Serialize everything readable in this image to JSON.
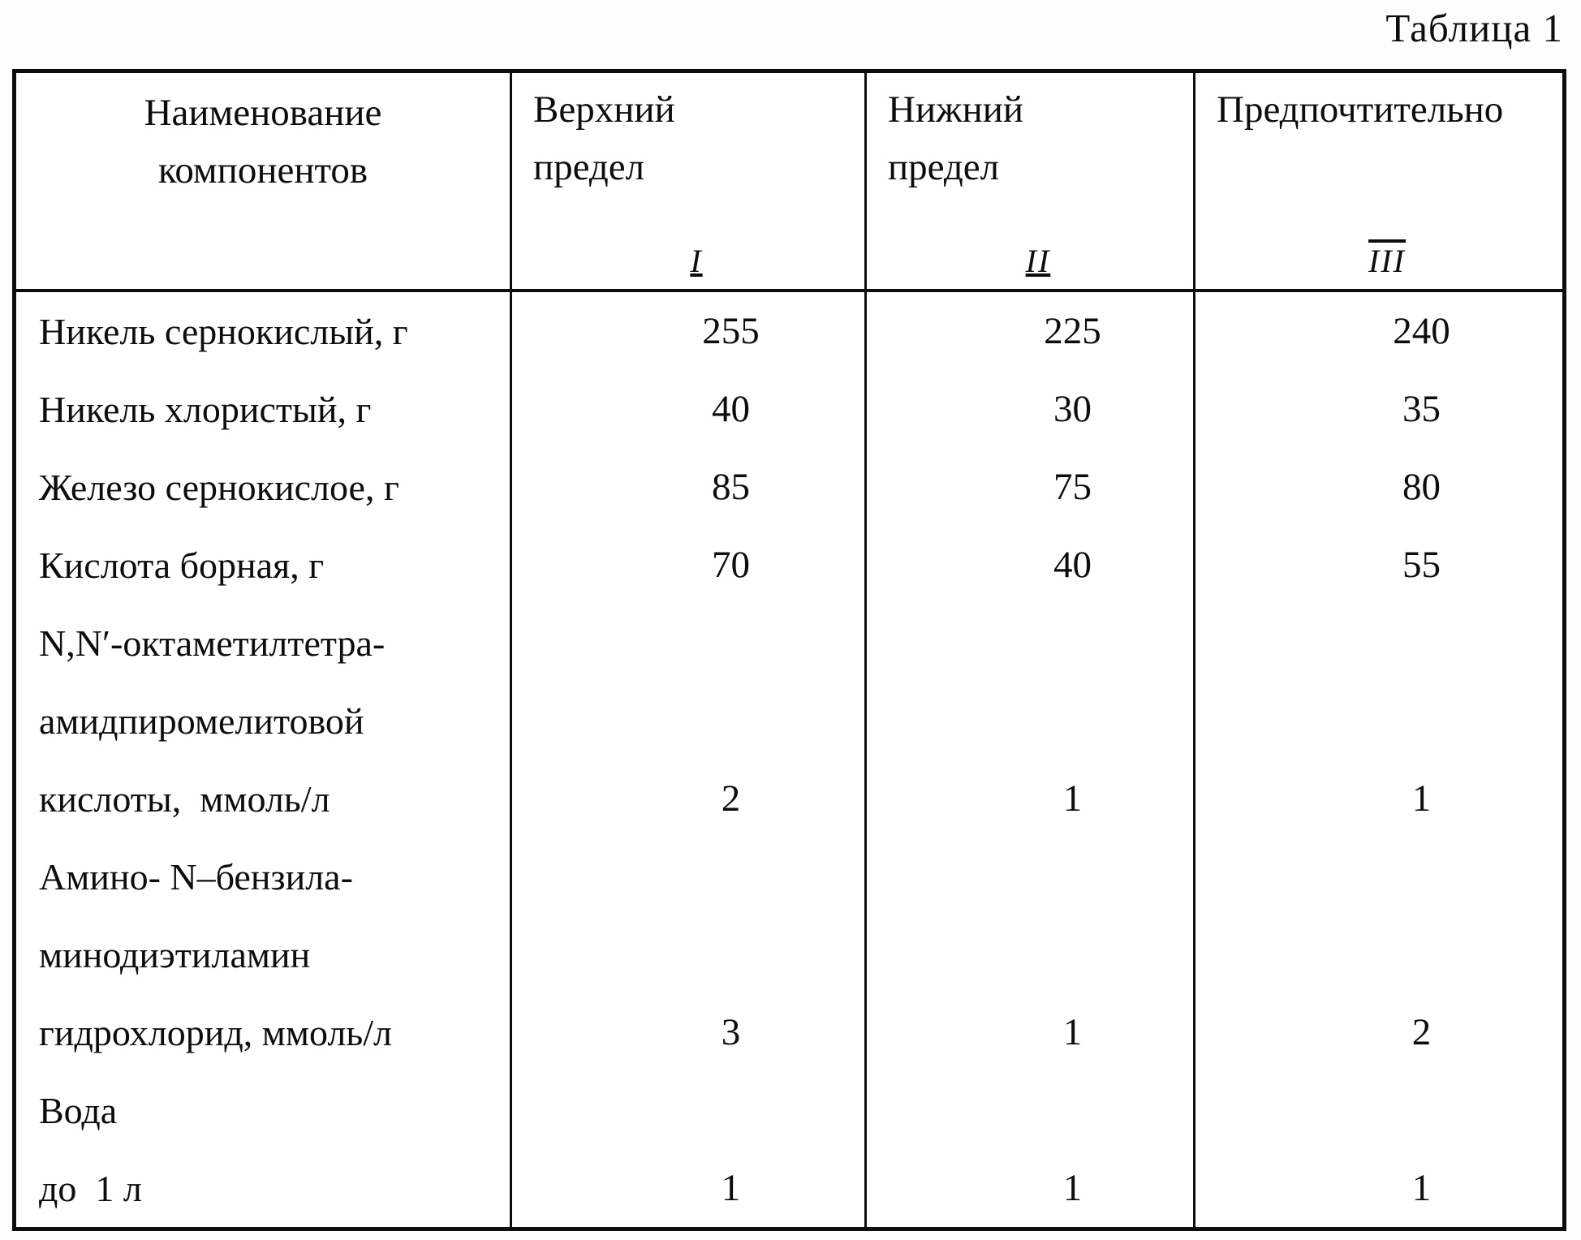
{
  "title": "Таблица 1",
  "table": {
    "columns": [
      {
        "header": "Наименование\nкомпонентов",
        "numeral": ""
      },
      {
        "header": "Верхний\nпредел",
        "numeral": "I"
      },
      {
        "header": "Нижний\nпредел",
        "numeral": "II"
      },
      {
        "header": "Предпочтительно",
        "numeral": "III"
      }
    ],
    "rows": [
      {
        "label": "Никель сернокислый, г",
        "values": [
          "255",
          "225",
          "240"
        ]
      },
      {
        "label": "Никель хлористый, г",
        "values": [
          "40",
          "30",
          "35"
        ]
      },
      {
        "label": "Железо сернокислое, г",
        "values": [
          "85",
          "75",
          "80"
        ]
      },
      {
        "label": "Кислота борная, г",
        "values": [
          "70",
          "40",
          "55"
        ]
      },
      {
        "label": "N,N′-октаметилтетра-",
        "values": [
          "",
          "",
          ""
        ]
      },
      {
        "label": "амидпиромелитовой",
        "values": [
          "",
          "",
          ""
        ]
      },
      {
        "label": "кислоты,  ммоль/л",
        "values": [
          "2",
          "1",
          "1"
        ]
      },
      {
        "label": "Амино- N–бензила-",
        "values": [
          "",
          "",
          ""
        ]
      },
      {
        "label": "минодиэтиламин",
        "values": [
          "",
          "",
          ""
        ]
      },
      {
        "label": "гидрохлорид, ммоль/л",
        "values": [
          "3",
          "1",
          "2"
        ]
      },
      {
        "label": "Вода",
        "values": [
          "",
          "",
          ""
        ]
      },
      {
        "label": "до  1 л",
        "values": [
          "1",
          "1",
          "1"
        ]
      }
    ]
  }
}
